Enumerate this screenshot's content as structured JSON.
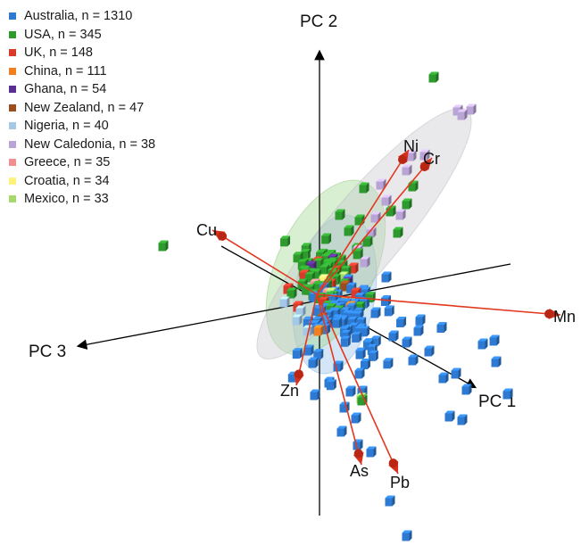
{
  "chart_data": {
    "type": "scatter",
    "legend_position": "top-left",
    "axes": {
      "x": "PC 1",
      "y": "PC 2",
      "z": "PC 3"
    },
    "legend": [
      {
        "label": "Australia, n = 1310",
        "color": "#2e7ad2"
      },
      {
        "label": "USA, n = 345",
        "color": "#2e9a2e"
      },
      {
        "label": "UK, n = 148",
        "color": "#d93a2b"
      },
      {
        "label": "China, n = 111",
        "color": "#ef7f22"
      },
      {
        "label": "Ghana, n = 54",
        "color": "#5a2f92"
      },
      {
        "label": "New Zealand, n = 47",
        "color": "#9a4e1f"
      },
      {
        "label": "Nigeria, n = 40",
        "color": "#a4c8e8"
      },
      {
        "label": "New Caledonia, n = 38",
        "color": "#b9a4d6"
      },
      {
        "label": "Greece, n = 35",
        "color": "#f29090"
      },
      {
        "label": "Croatia, n = 34",
        "color": "#fff27a"
      },
      {
        "label": "Mexico, n = 33",
        "color": "#a6d96a"
      }
    ],
    "loadings": [
      "Cu",
      "Ni",
      "Cr",
      "Mn",
      "Zn",
      "As",
      "Pb"
    ]
  }
}
